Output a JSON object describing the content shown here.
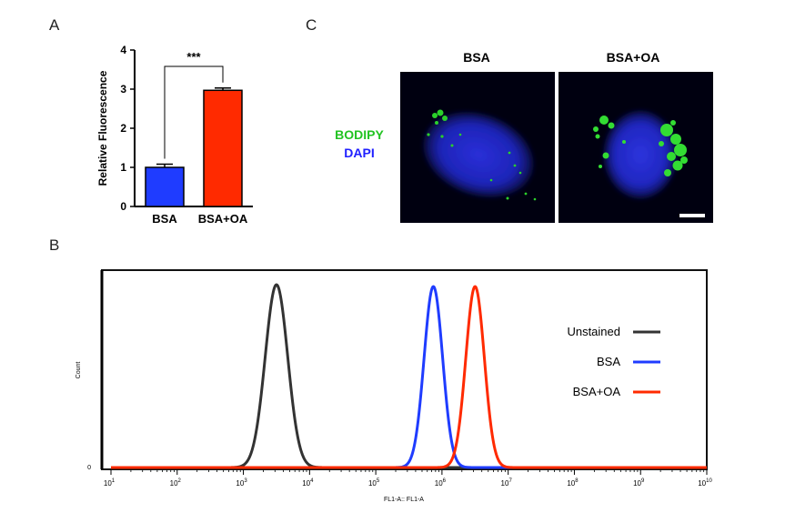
{
  "panels": {
    "a": "A",
    "b": "B",
    "c": "C"
  },
  "colors": {
    "bsa": "#1f3cff",
    "bsa_oa": "#ff2a00",
    "unstained": "#333333",
    "bodipy": "#22c322",
    "dapi": "#2020ff"
  },
  "chart_data": [
    {
      "type": "bar",
      "panel": "A",
      "categories": [
        "BSA",
        "BSA+OA"
      ],
      "values": [
        1.0,
        2.97
      ],
      "errors": [
        0.08,
        0.06
      ],
      "ylabel": "Relative Fluorescence",
      "ylim": [
        0,
        4
      ],
      "yticks": [
        "0",
        "1",
        "2",
        "3",
        "4"
      ],
      "significance": "***"
    },
    {
      "type": "line",
      "panel": "B",
      "xscale": "log",
      "xlim": [
        10,
        10000000000
      ],
      "xlabel": "FL1-A:: FL1-A",
      "ylabel": "Count",
      "yticks": [
        "0"
      ],
      "xtick_exponents": [
        "1",
        "2",
        "3",
        "4",
        "5",
        "6",
        "7",
        "8",
        "9",
        "10"
      ],
      "legend_position": "right",
      "series": [
        {
          "name": "Unstained",
          "center_log10": 3.5,
          "width_log10": 0.17,
          "peak": 1.0
        },
        {
          "name": "BSA",
          "center_log10": 5.87,
          "width_log10": 0.14,
          "peak": 0.99
        },
        {
          "name": "BSA+OA",
          "center_log10": 6.5,
          "width_log10": 0.14,
          "peak": 0.99
        }
      ]
    }
  ],
  "micrographs": {
    "labels": [
      "BSA",
      "BSA+OA"
    ],
    "stains": [
      "BODIPY",
      "DAPI"
    ]
  }
}
